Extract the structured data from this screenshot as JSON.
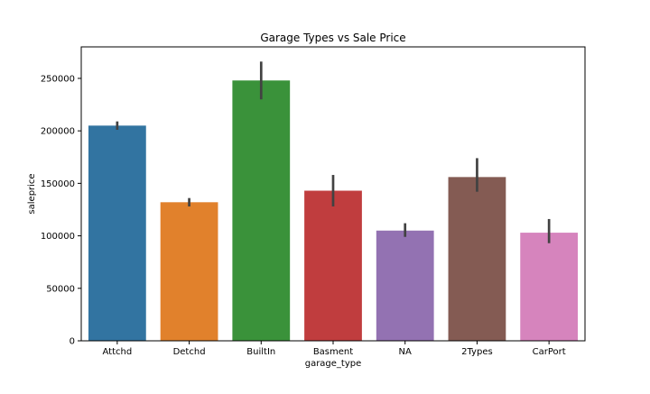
{
  "chart_data": {
    "type": "bar",
    "title": "Garage Types vs Sale Price",
    "xlabel": "garage_type",
    "ylabel": "saleprice",
    "ylim": [
      0,
      280000
    ],
    "yticks": [
      0,
      50000,
      100000,
      150000,
      200000,
      250000
    ],
    "categories": [
      "Attchd",
      "Detchd",
      "BuiltIn",
      "Basment",
      "NA",
      "2Types",
      "CarPort"
    ],
    "values": [
      205000,
      132000,
      248000,
      143000,
      105000,
      156000,
      103000
    ],
    "error_bars": [
      [
        201000,
        209000
      ],
      [
        128000,
        136000
      ],
      [
        230000,
        266000
      ],
      [
        128000,
        158000
      ],
      [
        99000,
        112000
      ],
      [
        142000,
        174000
      ],
      [
        93000,
        116000
      ]
    ],
    "colors": [
      "#3274a1",
      "#e1812c",
      "#3a923a",
      "#c03d3e",
      "#9372b2",
      "#845b53",
      "#d684bd"
    ],
    "grid": false,
    "legend": "none"
  }
}
